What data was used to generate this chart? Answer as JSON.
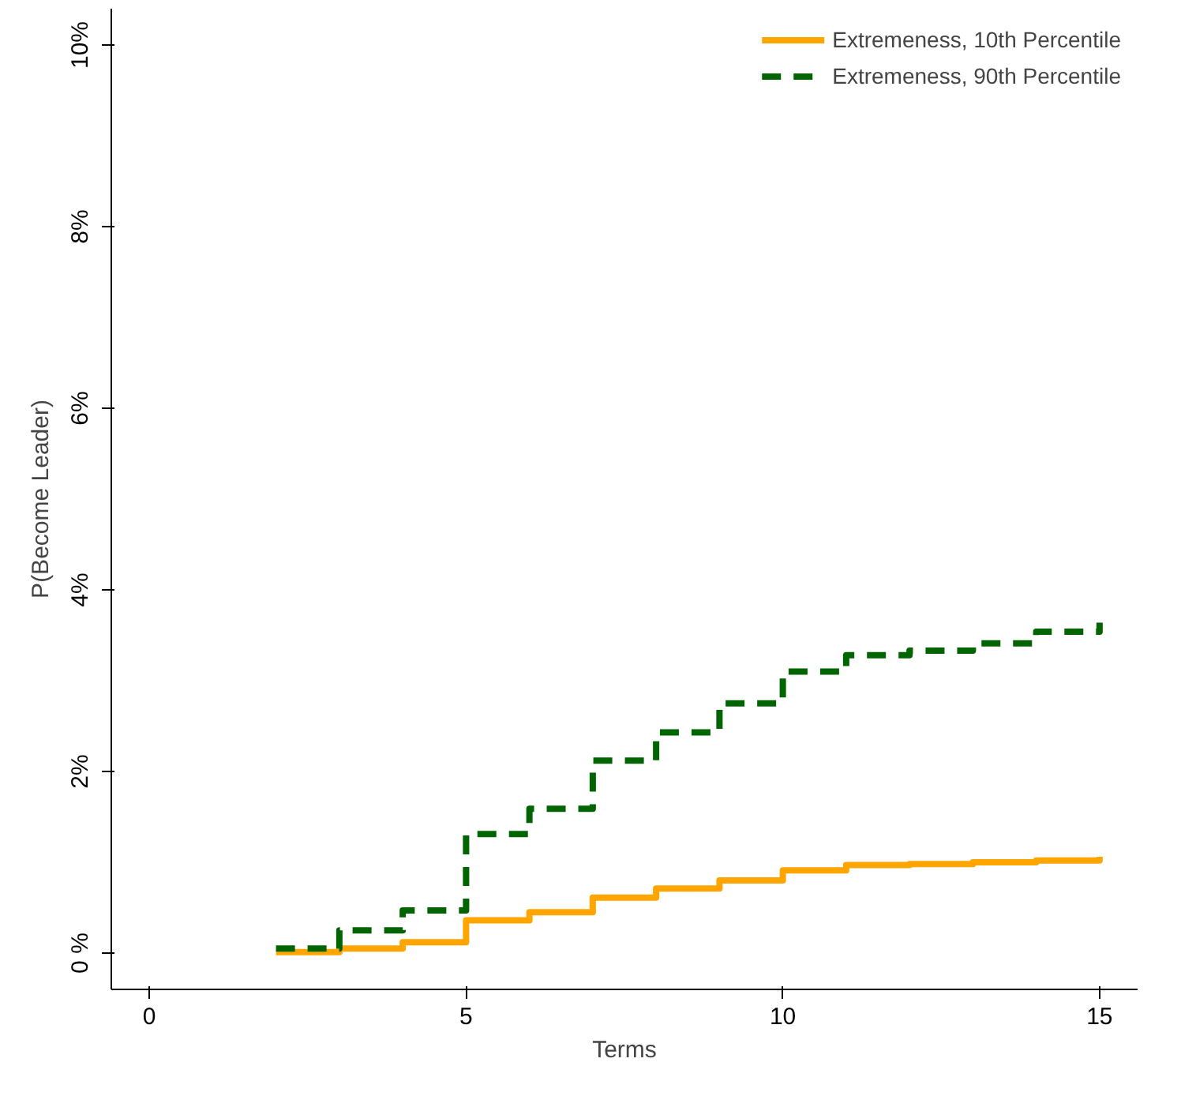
{
  "chart_data": {
    "type": "step",
    "xlabel": "Terms",
    "ylabel": "P(Become Leader)",
    "x": [
      2,
      3,
      4,
      5,
      6,
      7,
      8,
      9,
      10,
      11,
      12,
      13,
      14,
      15
    ],
    "series": [
      {
        "name": "Extremeness, 10th Percentile",
        "color": "#ffa500",
        "line_style": "solid",
        "values": [
          0.01,
          0.05,
          0.12,
          0.36,
          0.45,
          0.61,
          0.71,
          0.8,
          0.91,
          0.97,
          0.98,
          1.0,
          1.02,
          1.06
        ]
      },
      {
        "name": "Extremeness, 90th Percentile",
        "color": "#006400",
        "line_style": "dashed",
        "values": [
          0.05,
          0.25,
          0.47,
          1.31,
          1.59,
          2.12,
          2.43,
          2.75,
          3.1,
          3.28,
          3.33,
          3.41,
          3.54,
          3.64
        ]
      }
    ],
    "xlim": [
      -0.6,
      15.6
    ],
    "ylim": [
      -0.4,
      10.4
    ],
    "xticks": [
      0,
      5,
      10,
      15
    ],
    "yticks": [
      {
        "value": 0,
        "label": "0 %"
      },
      {
        "value": 2,
        "label": "2%"
      },
      {
        "value": 4,
        "label": "4%"
      },
      {
        "value": 6,
        "label": "6%"
      },
      {
        "value": 8,
        "label": "8%"
      },
      {
        "value": 10,
        "label": "10%"
      }
    ],
    "grid": false,
    "legend": "top right"
  }
}
